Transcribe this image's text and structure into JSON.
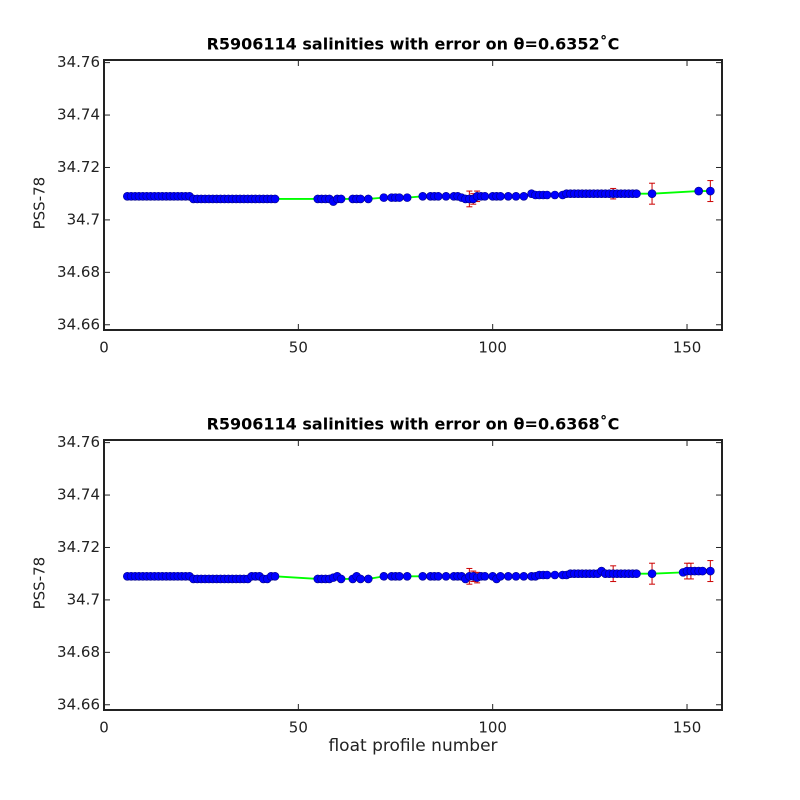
{
  "chart_data": [
    {
      "type": "line",
      "title": "R5906114 salinities with error on θ=0.6352˚C",
      "ylabel": "PSS-78",
      "x": [
        6,
        7,
        8,
        9,
        10,
        11,
        12,
        13,
        14,
        15,
        16,
        17,
        18,
        19,
        20,
        21,
        22,
        23,
        24,
        25,
        26,
        27,
        28,
        29,
        30,
        31,
        32,
        33,
        34,
        35,
        36,
        37,
        38,
        39,
        40,
        41,
        42,
        43,
        44,
        55,
        56,
        57,
        58,
        59,
        60,
        61,
        64,
        65,
        66,
        68,
        72,
        74,
        75,
        76,
        78,
        82,
        84,
        85,
        86,
        88,
        90,
        91,
        92,
        93,
        94,
        95,
        96,
        97,
        98,
        100,
        101,
        102,
        104,
        106,
        108,
        110,
        111,
        112,
        113,
        114,
        116,
        118,
        119,
        120,
        121,
        122,
        123,
        124,
        125,
        126,
        127,
        128,
        129,
        130,
        131,
        132,
        133,
        134,
        135,
        136,
        137,
        141,
        153,
        156
      ],
      "values": [
        34.709,
        34.709,
        34.709,
        34.709,
        34.709,
        34.709,
        34.709,
        34.709,
        34.709,
        34.709,
        34.709,
        34.709,
        34.709,
        34.709,
        34.709,
        34.709,
        34.709,
        34.708,
        34.708,
        34.708,
        34.708,
        34.708,
        34.708,
        34.708,
        34.708,
        34.708,
        34.708,
        34.708,
        34.708,
        34.708,
        34.708,
        34.708,
        34.708,
        34.708,
        34.708,
        34.708,
        34.708,
        34.708,
        34.708,
        34.708,
        34.708,
        34.708,
        34.708,
        34.707,
        34.708,
        34.708,
        34.708,
        34.708,
        34.708,
        34.708,
        34.7085,
        34.7085,
        34.7085,
        34.7085,
        34.7085,
        34.709,
        34.709,
        34.709,
        34.709,
        34.709,
        34.709,
        34.709,
        34.7085,
        34.708,
        34.708,
        34.708,
        34.709,
        34.709,
        34.709,
        34.709,
        34.709,
        34.709,
        34.709,
        34.709,
        34.709,
        34.71,
        34.7095,
        34.7095,
        34.7095,
        34.7095,
        34.7095,
        34.7095,
        34.71,
        34.71,
        34.71,
        34.71,
        34.71,
        34.71,
        34.71,
        34.71,
        34.71,
        34.71,
        34.71,
        34.71,
        34.71,
        34.71,
        34.71,
        34.71,
        34.71,
        34.71,
        34.71,
        34.71,
        34.711,
        34.711
      ],
      "errors": [
        0.0005,
        0.0005,
        0.0005,
        0.0005,
        0.0005,
        0.0005,
        0.0005,
        0.0005,
        0.0005,
        0.001,
        0.001,
        0.001,
        0.001,
        0.001,
        0.001,
        0.0005,
        0.0005,
        0.0005,
        0.0005,
        0.0005,
        0.0005,
        0.0005,
        0.001,
        0.001,
        0.001,
        0.001,
        0.001,
        0.001,
        0.001,
        0.001,
        0.001,
        0.001,
        0.001,
        0.0005,
        0.0005,
        0.0005,
        0.0005,
        0.0005,
        0.0005,
        0.0005,
        0.0005,
        0.0005,
        0.0005,
        0.0005,
        0.0005,
        0.0005,
        0.0005,
        0.0005,
        0.0005,
        0.0005,
        0.0005,
        0.0005,
        0.0005,
        0.0005,
        0.0005,
        0.0005,
        0.0005,
        0.0005,
        0.0005,
        0.0005,
        0.0005,
        0.0005,
        0.0005,
        0.0005,
        0.003,
        0.002,
        0.002,
        0.0005,
        0.0005,
        0.0005,
        0.0005,
        0.0005,
        0.0005,
        0.0005,
        0.0005,
        0.0005,
        0.0005,
        0.0005,
        0.0005,
        0.0005,
        0.0005,
        0.0005,
        0.0005,
        0.0005,
        0.0005,
        0.0005,
        0.0005,
        0.0005,
        0.0005,
        0.0005,
        0.0005,
        0.0005,
        0.0005,
        0.0005,
        0.002,
        0.0005,
        0.0005,
        0.0005,
        0.0005,
        0.001,
        0.0005,
        0.004,
        0.001,
        0.004
      ],
      "xlim": [
        0,
        159
      ],
      "ylim": [
        34.658,
        34.761
      ],
      "xticks": [
        0,
        50,
        100,
        150
      ],
      "yticks": [
        34.66,
        34.68,
        34.7,
        34.72,
        34.74,
        34.76
      ],
      "line_color": "#00ff00",
      "marker_color": "#0000ff",
      "error_color": "#cc0000"
    },
    {
      "type": "line",
      "title": "R5906114 salinities with error on θ=0.6368˚C",
      "ylabel": "PSS-78",
      "xlabel": "float profile number",
      "x": [
        6,
        7,
        8,
        9,
        10,
        11,
        12,
        13,
        14,
        15,
        16,
        17,
        18,
        19,
        20,
        21,
        22,
        23,
        24,
        25,
        26,
        27,
        28,
        29,
        30,
        31,
        32,
        33,
        34,
        35,
        36,
        37,
        38,
        39,
        40,
        41,
        42,
        43,
        44,
        55,
        56,
        57,
        58,
        59,
        60,
        61,
        64,
        65,
        66,
        68,
        72,
        74,
        75,
        76,
        78,
        82,
        84,
        85,
        86,
        88,
        90,
        91,
        92,
        93,
        94,
        95,
        96,
        97,
        98,
        100,
        101,
        102,
        104,
        106,
        108,
        110,
        111,
        112,
        113,
        114,
        116,
        118,
        119,
        120,
        121,
        122,
        123,
        124,
        125,
        126,
        127,
        128,
        129,
        130,
        131,
        132,
        133,
        134,
        135,
        136,
        137,
        141,
        149,
        150,
        151,
        152,
        153,
        154,
        156
      ],
      "values": [
        34.709,
        34.709,
        34.709,
        34.709,
        34.709,
        34.709,
        34.709,
        34.709,
        34.709,
        34.709,
        34.709,
        34.709,
        34.709,
        34.709,
        34.709,
        34.709,
        34.709,
        34.708,
        34.708,
        34.708,
        34.708,
        34.708,
        34.708,
        34.708,
        34.708,
        34.708,
        34.708,
        34.708,
        34.708,
        34.708,
        34.708,
        34.708,
        34.709,
        34.709,
        34.709,
        34.708,
        34.708,
        34.709,
        34.709,
        34.708,
        34.708,
        34.708,
        34.708,
        34.7085,
        34.709,
        34.708,
        34.708,
        34.709,
        34.708,
        34.708,
        34.709,
        34.709,
        34.709,
        34.709,
        34.709,
        34.709,
        34.709,
        34.709,
        34.709,
        34.709,
        34.709,
        34.709,
        34.709,
        34.708,
        34.709,
        34.709,
        34.7085,
        34.709,
        34.709,
        34.709,
        34.708,
        34.709,
        34.709,
        34.709,
        34.709,
        34.709,
        34.709,
        34.7095,
        34.7095,
        34.7095,
        34.7095,
        34.7095,
        34.7095,
        34.71,
        34.71,
        34.71,
        34.71,
        34.71,
        34.71,
        34.71,
        34.71,
        34.711,
        34.71,
        34.71,
        34.71,
        34.71,
        34.71,
        34.71,
        34.71,
        34.71,
        34.71,
        34.71,
        34.7105,
        34.711,
        34.711,
        34.711,
        34.711,
        34.711,
        34.711
      ],
      "errors": [
        0.0005,
        0.0005,
        0.0005,
        0.0005,
        0.0005,
        0.0005,
        0.0005,
        0.0005,
        0.0005,
        0.001,
        0.001,
        0.001,
        0.001,
        0.001,
        0.001,
        0.0005,
        0.0005,
        0.0005,
        0.0005,
        0.0005,
        0.0005,
        0.0005,
        0.001,
        0.001,
        0.001,
        0.001,
        0.001,
        0.001,
        0.001,
        0.001,
        0.001,
        0.001,
        0.001,
        0.0005,
        0.0005,
        0.0005,
        0.0005,
        0.0005,
        0.0005,
        0.0005,
        0.0005,
        0.0005,
        0.0005,
        0.0005,
        0.0005,
        0.0005,
        0.0005,
        0.0005,
        0.0005,
        0.0005,
        0.0005,
        0.0005,
        0.0005,
        0.0005,
        0.0005,
        0.0005,
        0.0005,
        0.0005,
        0.0005,
        0.0005,
        0.0005,
        0.0005,
        0.0005,
        0.0005,
        0.003,
        0.002,
        0.002,
        0.0005,
        0.0005,
        0.0005,
        0.001,
        0.0005,
        0.0005,
        0.0005,
        0.0005,
        0.0005,
        0.0005,
        0.0005,
        0.0005,
        0.0005,
        0.0005,
        0.0005,
        0.0005,
        0.0005,
        0.0005,
        0.0005,
        0.0005,
        0.0005,
        0.0005,
        0.0005,
        0.0005,
        0.0005,
        0.0005,
        0.0005,
        0.003,
        0.0005,
        0.0005,
        0.0005,
        0.0005,
        0.001,
        0.0005,
        0.004,
        0.0005,
        0.003,
        0.003,
        0.0005,
        0.001,
        0.0005,
        0.004
      ],
      "xlim": [
        0,
        159
      ],
      "ylim": [
        34.658,
        34.761
      ],
      "xticks": [
        0,
        50,
        100,
        150
      ],
      "yticks": [
        34.66,
        34.68,
        34.7,
        34.72,
        34.74,
        34.76
      ],
      "line_color": "#00ff00",
      "marker_color": "#0000ff",
      "error_color": "#cc0000"
    }
  ]
}
